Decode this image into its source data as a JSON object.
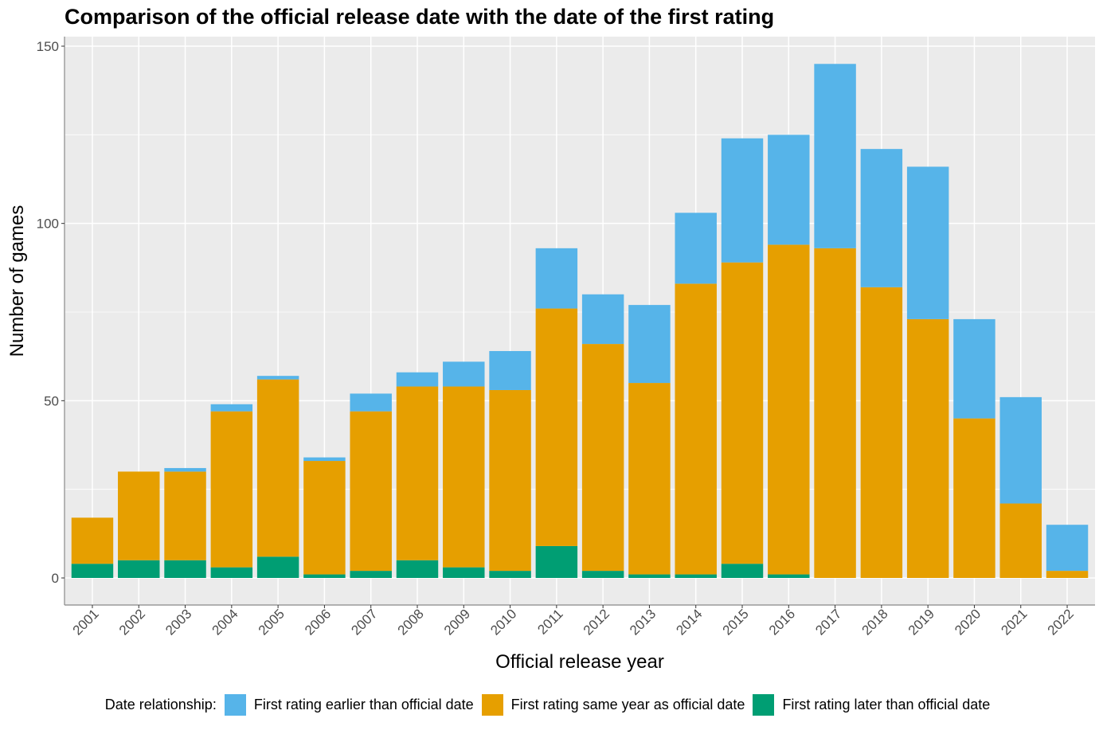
{
  "chart_data": {
    "type": "bar",
    "stacked": true,
    "title": "Comparison of the official release date with the date of the first rating",
    "xlabel": "Official release year",
    "ylabel": "Number of games",
    "ylim": [
      0,
      150
    ],
    "yticks": [
      0,
      50,
      100,
      150
    ],
    "grid": true,
    "legend_position": "bottom",
    "legend_title": "Date relationship:",
    "categories": [
      "2001",
      "2002",
      "2003",
      "2004",
      "2005",
      "2006",
      "2007",
      "2008",
      "2009",
      "2010",
      "2011",
      "2012",
      "2013",
      "2014",
      "2015",
      "2016",
      "2017",
      "2018",
      "2019",
      "2020",
      "2021",
      "2022"
    ],
    "series": [
      {
        "name": "First rating later than official date",
        "color": "#009E73",
        "values": [
          4,
          5,
          5,
          3,
          6,
          1,
          2,
          5,
          3,
          2,
          9,
          2,
          1,
          1,
          4,
          1,
          0,
          0,
          0,
          0,
          0,
          0
        ]
      },
      {
        "name": "First rating same year as official date",
        "color": "#E69F00",
        "values": [
          13,
          25,
          25,
          44,
          50,
          32,
          45,
          49,
          51,
          51,
          67,
          64,
          54,
          82,
          85,
          93,
          93,
          82,
          73,
          45,
          21,
          2
        ]
      },
      {
        "name": "First rating earlier than official date",
        "color": "#56B4E9",
        "values": [
          0,
          0,
          1,
          2,
          1,
          1,
          5,
          4,
          7,
          11,
          17,
          14,
          22,
          20,
          35,
          31,
          52,
          39,
          43,
          28,
          30,
          13
        ]
      }
    ],
    "legend_order": [
      2,
      1,
      0
    ]
  }
}
